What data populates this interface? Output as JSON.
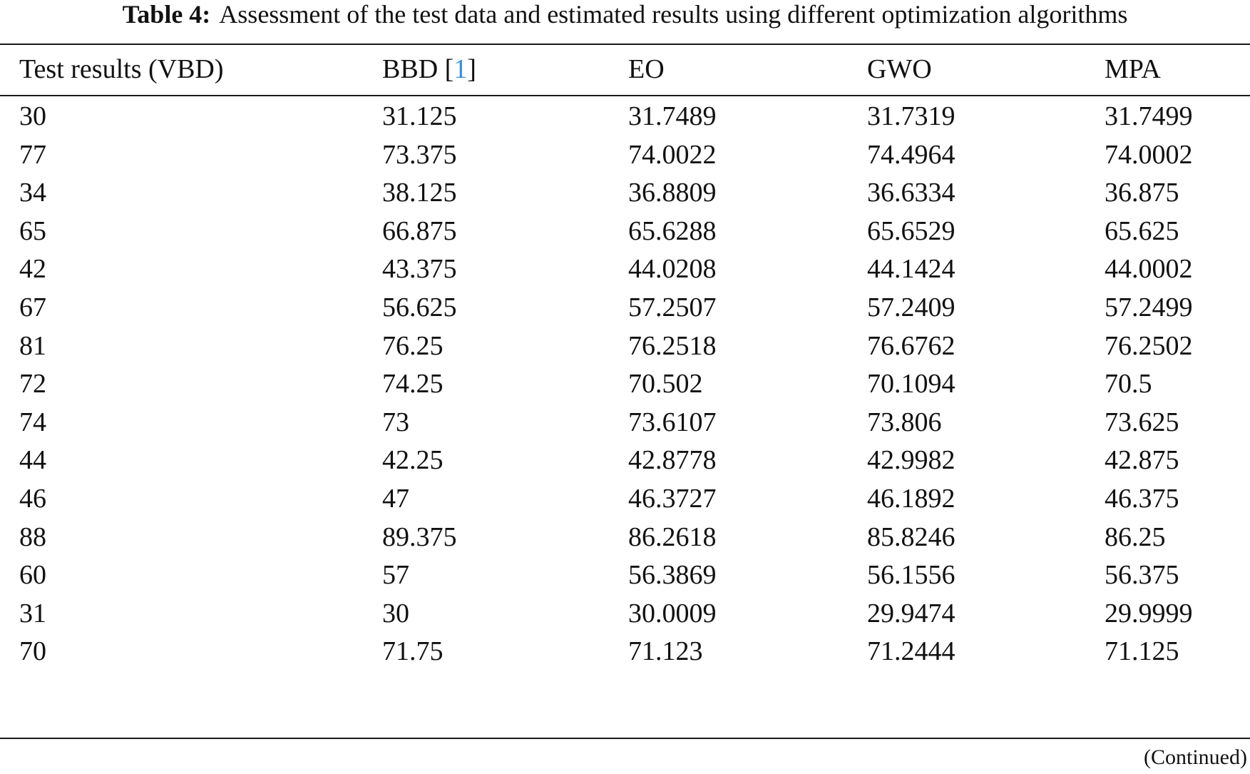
{
  "caption": {
    "label": "Table 4:",
    "text": "Assessment of the test data and estimated results using different optimization algorithms"
  },
  "table": {
    "headers": [
      {
        "text": "Test results (VBD)"
      },
      {
        "text": "BBD [",
        "ref": "1",
        "after": "]"
      },
      {
        "text": "EO"
      },
      {
        "text": "GWO"
      },
      {
        "text": "MPA"
      }
    ],
    "rows": [
      [
        "30",
        "31.125",
        "31.7489",
        "31.7319",
        "31.7499"
      ],
      [
        "77",
        "73.375",
        "74.0022",
        "74.4964",
        "74.0002"
      ],
      [
        "34",
        "38.125",
        "36.8809",
        "36.6334",
        "36.875"
      ],
      [
        "65",
        "66.875",
        "65.6288",
        "65.6529",
        "65.625"
      ],
      [
        "42",
        "43.375",
        "44.0208",
        "44.1424",
        "44.0002"
      ],
      [
        "67",
        "56.625",
        "57.2507",
        "57.2409",
        "57.2499"
      ],
      [
        "81",
        "76.25",
        "76.2518",
        "76.6762",
        "76.2502"
      ],
      [
        "72",
        "74.25",
        "70.502",
        "70.1094",
        "70.5"
      ],
      [
        "74",
        "73",
        "73.6107",
        "73.806",
        "73.625"
      ],
      [
        "44",
        "42.25",
        "42.8778",
        "42.9982",
        "42.875"
      ],
      [
        "46",
        "47",
        "46.3727",
        "46.1892",
        "46.375"
      ],
      [
        "88",
        "89.375",
        "86.2618",
        "85.8246",
        "86.25"
      ],
      [
        "60",
        "57",
        "56.3869",
        "56.1556",
        "56.375"
      ],
      [
        "31",
        "30",
        "30.0009",
        "29.9474",
        "29.9999"
      ],
      [
        "70",
        "71.75",
        "71.123",
        "71.2444",
        "71.125"
      ]
    ]
  },
  "footer": {
    "continued": "(Continued)"
  },
  "colors": {
    "reference_link": "#3a8fd6"
  }
}
